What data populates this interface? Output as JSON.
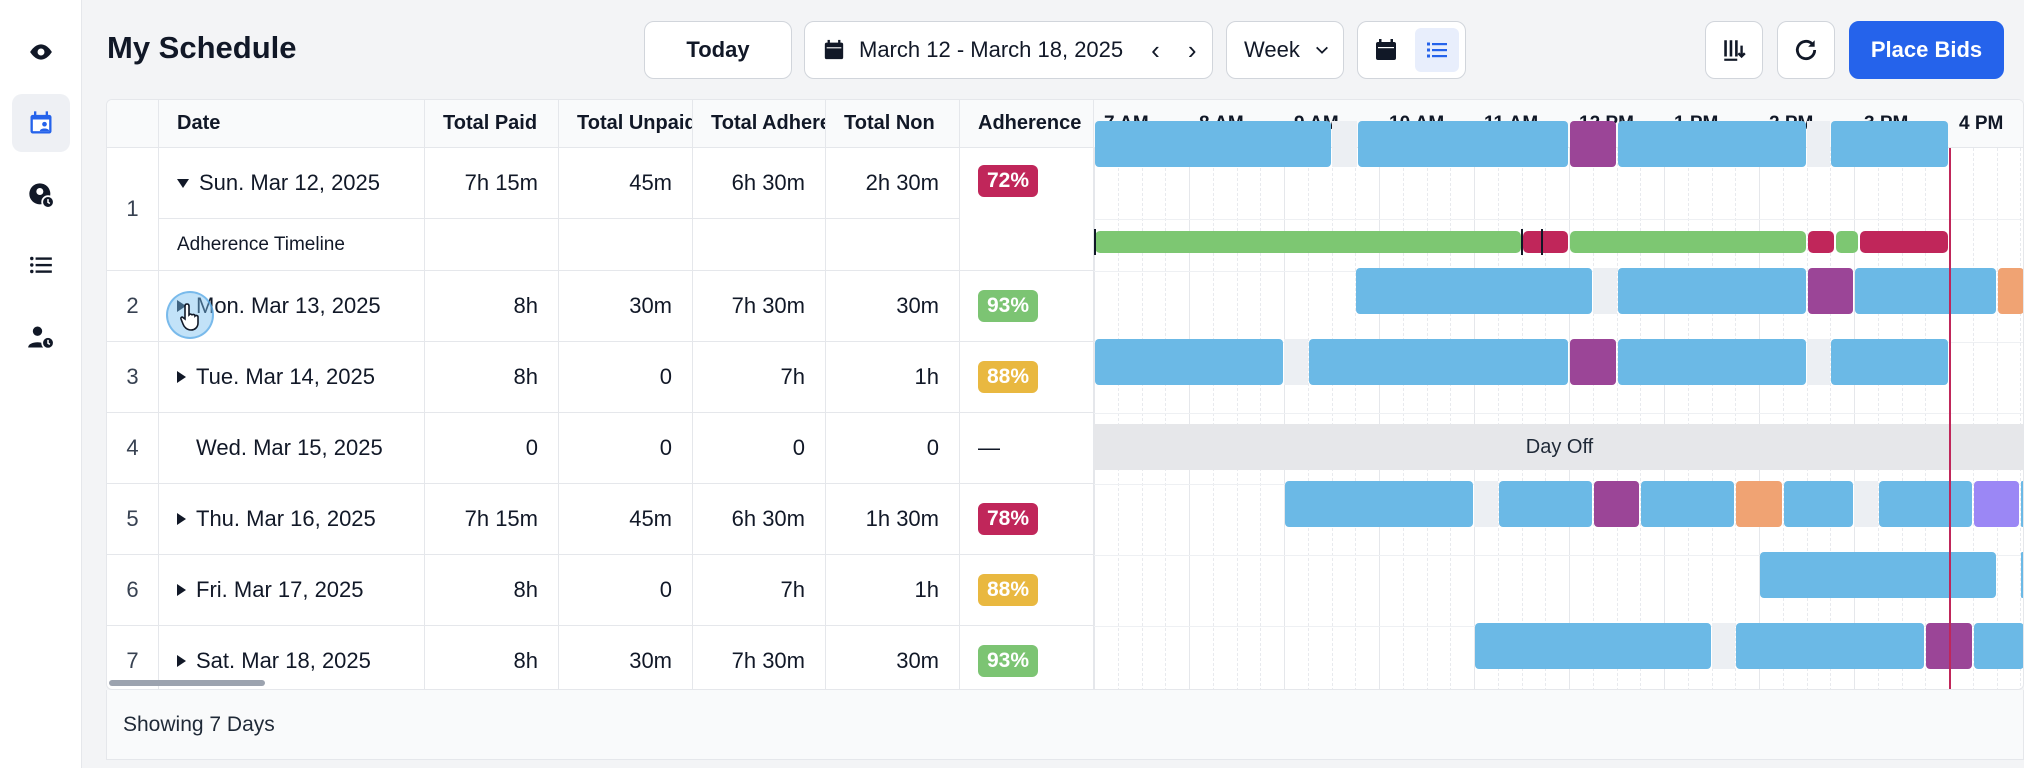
{
  "header": {
    "title": "My Schedule",
    "today_label": "Today",
    "date_range": "March 12 - March 18, 2025",
    "view_select": "Week",
    "place_bids_label": "Place Bids"
  },
  "sidebar": {
    "items": [
      {
        "icon": "eye-icon"
      },
      {
        "icon": "calendar-user-icon",
        "active": true
      },
      {
        "icon": "user-clock-icon"
      },
      {
        "icon": "list-icon"
      },
      {
        "icon": "user-time-icon"
      }
    ]
  },
  "table": {
    "columns": [
      "Date",
      "Total Paid",
      "Total Unpaid",
      "Total Adherence",
      "Total Non",
      "Adherence"
    ],
    "rows": [
      {
        "index": "1",
        "expanded": true,
        "date": "Sun. Mar 12, 2025",
        "paid": "7h 15m",
        "unpaid": "45m",
        "adh": "6h 30m",
        "non": "2h 30m",
        "adherence": "72%",
        "adherence_color": "#c0265a"
      },
      {
        "index": "2",
        "date": "Mon. Mar 13, 2025",
        "paid": "8h",
        "unpaid": "30m",
        "adh": "7h 30m",
        "non": "30m",
        "adherence": "93%",
        "adherence_color": "#7cc473"
      },
      {
        "index": "3",
        "date": "Tue. Mar 14, 2025",
        "paid": "8h",
        "unpaid": "0",
        "adh": "7h",
        "non": "1h",
        "adherence": "88%",
        "adherence_color": "#e9b840"
      },
      {
        "index": "4",
        "noarrow": true,
        "date": "Wed. Mar 15, 2025",
        "paid": "0",
        "unpaid": "0",
        "adh": "0",
        "non": "0",
        "adherence": "—",
        "adherence_color": ""
      },
      {
        "index": "5",
        "date": "Thu. Mar 16, 2025",
        "paid": "7h 15m",
        "unpaid": "45m",
        "adh": "6h 30m",
        "non": "1h 30m",
        "adherence": "78%",
        "adherence_color": "#c0265a"
      },
      {
        "index": "6",
        "date": "Fri. Mar 17, 2025",
        "paid": "8h",
        "unpaid": "0",
        "adh": "7h",
        "non": "1h",
        "adherence": "88%",
        "adherence_color": "#e9b840"
      },
      {
        "index": "7",
        "date": "Sat. Mar 18, 2025",
        "paid": "8h",
        "unpaid": "30m",
        "adh": "7h 30m",
        "non": "30m",
        "adherence": "93%",
        "adherence_color": "#7cc473"
      }
    ],
    "sub_row_label": "Adherence Timeline"
  },
  "timeline": {
    "hours": [
      "7 AM",
      "8 AM",
      "9 AM",
      "10 AM",
      "11 AM",
      "12 PM",
      "1 PM",
      "2 PM",
      "3 PM",
      "4 PM"
    ],
    "day_off_label": "Day Off",
    "colors": {
      "work": "#6bb9e6",
      "meal": "#9b4597",
      "orange": "#f0a373",
      "purple": "#9b87f5",
      "adherent": "#7dc772",
      "nonadherent": "#c0265a",
      "break": "#eceff3"
    }
  },
  "footer": {
    "text": "Showing 7 Days"
  }
}
